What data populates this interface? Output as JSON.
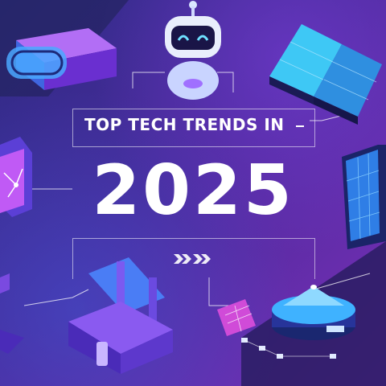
{
  "title": {
    "line1": "TOP TECH TRENDS IN",
    "year": "2025"
  },
  "colors": {
    "bg_dark": "#2a1a5e",
    "bg_mid": "#4a2a9a",
    "bg_accent": "#7a2fb8",
    "device_cyan": "#38c9ff",
    "device_purple": "#8a4df0",
    "text": "#ffffff"
  },
  "icons": [
    "vr-headset-icon",
    "robot-head-icon",
    "solar-panel-icon",
    "circuit-chip-icon",
    "server-panel-icon",
    "3d-printer-icon",
    "satellite-dish-icon",
    "data-board-icon"
  ]
}
